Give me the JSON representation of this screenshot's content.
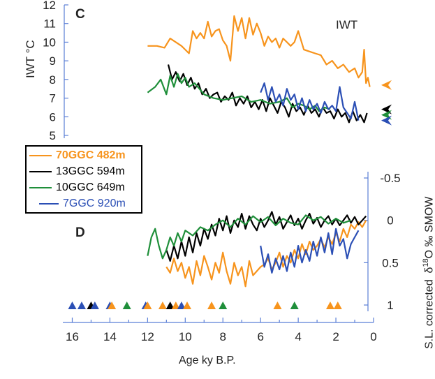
{
  "chart_data": [
    {
      "panel": "C",
      "type": "line",
      "title": "IWT",
      "ylabel": "IWT °C",
      "ylim": [
        5,
        12
      ],
      "yticks": [
        "5",
        "6",
        "7",
        "8",
        "9",
        "10",
        "11",
        "12"
      ],
      "arrow_markers": [
        {
          "series": "70GGC 482m",
          "y": 7.7,
          "color": "#f7941d"
        },
        {
          "series": "13GGC 594m",
          "y": 6.4,
          "color": "#000000"
        },
        {
          "series": "10GGC 649m",
          "y": 6.1,
          "color": "#1f8f3a"
        },
        {
          "series": "7GGC 920m",
          "y": 5.8,
          "color": "#2b4fb5"
        }
      ],
      "series": [
        {
          "name": "70GGC 482m",
          "color": "#f7941d",
          "x": [
            12.0,
            11.5,
            11.1,
            10.8,
            10.5,
            10.2,
            10.0,
            9.8,
            9.6,
            9.4,
            9.2,
            9.0,
            8.8,
            8.6,
            8.4,
            8.2,
            8.0,
            7.8,
            7.6,
            7.4,
            7.2,
            7.0,
            6.8,
            6.6,
            6.4,
            6.2,
            6.0,
            5.8,
            5.6,
            5.4,
            5.2,
            5.0,
            4.8,
            4.6,
            4.4,
            4.2,
            4.0,
            3.7,
            3.4,
            3.1,
            2.8,
            2.5,
            2.2,
            1.9,
            1.6,
            1.3,
            1.0,
            0.8,
            0.6,
            0.5,
            0.4,
            0.3,
            0.2
          ],
          "values": [
            9.8,
            9.8,
            9.7,
            10.2,
            10.0,
            9.8,
            9.6,
            9.4,
            10.6,
            10.2,
            10.5,
            10.2,
            11.1,
            10.3,
            10.6,
            10.7,
            10.1,
            9.8,
            9.0,
            11.4,
            10.6,
            11.3,
            10.2,
            11.3,
            10.4,
            11.0,
            10.5,
            9.8,
            10.3,
            10.0,
            10.2,
            9.7,
            10.2,
            10.0,
            9.8,
            10.0,
            10.6,
            9.6,
            9.5,
            9.4,
            9.3,
            8.8,
            9.0,
            8.6,
            8.8,
            8.4,
            8.6,
            8.1,
            8.4,
            9.6,
            7.8,
            8.1,
            7.6
          ]
        },
        {
          "name": "13GGC 594m",
          "color": "#000000",
          "x": [
            10.9,
            10.7,
            10.5,
            10.3,
            10.1,
            9.9,
            9.7,
            9.5,
            9.3,
            9.1,
            8.9,
            8.7,
            8.5,
            8.3,
            8.1,
            7.9,
            7.7,
            7.5,
            7.3,
            7.1,
            6.9,
            6.7,
            6.5,
            6.3,
            6.1,
            5.9,
            5.7,
            5.5,
            5.3,
            5.1,
            4.9,
            4.7,
            4.5,
            4.3,
            4.1,
            3.9,
            3.7,
            3.5,
            3.3,
            3.1,
            2.9,
            2.7,
            2.5,
            2.3,
            2.1,
            1.9,
            1.7,
            1.5,
            1.3,
            1.1,
            0.9,
            0.7,
            0.5,
            0.35
          ],
          "values": [
            8.8,
            8.0,
            8.4,
            7.9,
            8.3,
            7.7,
            8.1,
            7.5,
            7.8,
            7.2,
            7.5,
            7.0,
            7.2,
            7.3,
            6.8,
            7.1,
            6.9,
            7.3,
            6.6,
            7.0,
            6.7,
            7.1,
            6.5,
            6.8,
            6.4,
            6.9,
            6.3,
            7.0,
            6.6,
            6.2,
            6.8,
            6.5,
            6.0,
            6.7,
            6.3,
            6.5,
            6.1,
            6.6,
            6.2,
            6.4,
            6.0,
            6.5,
            6.2,
            6.3,
            5.9,
            6.4,
            6.0,
            6.2,
            5.7,
            6.3,
            5.8,
            6.1,
            5.7,
            6.2
          ]
        },
        {
          "name": "10GGC 649m",
          "color": "#1f8f3a",
          "x": [
            12.0,
            11.6,
            11.3,
            11.0,
            10.8,
            10.6,
            10.4,
            10.2,
            10.0,
            9.8,
            9.5,
            9.0,
            8.5,
            8.0,
            7.5,
            7.0,
            6.5,
            6.0,
            5.5,
            5.0,
            4.6,
            4.3,
            4.0,
            3.7,
            3.4,
            3.1,
            2.9,
            2.6,
            2.3
          ],
          "values": [
            7.3,
            7.6,
            8.0,
            7.2,
            8.2,
            7.6,
            8.3,
            7.8,
            8.1,
            7.6,
            7.8,
            7.2,
            7.0,
            6.9,
            7.0,
            7.1,
            6.8,
            6.9,
            6.7,
            6.8,
            7.0,
            6.5,
            6.7,
            6.6,
            6.4,
            6.6,
            6.3,
            6.5,
            6.4
          ]
        },
        {
          "name": "7GGC 920m",
          "color": "#2b4fb5",
          "x": [
            6.0,
            5.8,
            5.6,
            5.4,
            5.2,
            5.0,
            4.8,
            4.6,
            4.4,
            4.2,
            4.0,
            3.8,
            3.6,
            3.4,
            3.2,
            3.0,
            2.8,
            2.6,
            2.4,
            2.2,
            2.0,
            1.8,
            1.6,
            1.4,
            1.2,
            1.0,
            0.8
          ],
          "values": [
            7.3,
            7.8,
            6.9,
            7.6,
            6.8,
            7.2,
            6.6,
            7.5,
            6.9,
            7.2,
            6.4,
            7.0,
            6.3,
            6.9,
            6.4,
            6.7,
            6.2,
            6.8,
            6.4,
            6.6,
            6.3,
            7.6,
            6.5,
            6.2,
            5.9,
            6.8,
            5.8
          ]
        }
      ]
    },
    {
      "panel": "D",
      "type": "line",
      "ylabel_prefix": "S.L. corrected",
      "ylabel_symbol": "δ",
      "ylabel_super": "18",
      "ylabel_suffix": "O ‰ SMOW",
      "ylim": [
        1,
        -0.5
      ],
      "yticks": [
        "-0.5",
        "0",
        "0.5",
        "1"
      ],
      "xlabel": "Age ky B.P.",
      "xlim": [
        16.5,
        0
      ],
      "xticks": [
        "16",
        "14",
        "12",
        "10",
        "8",
        "6",
        "4",
        "2",
        "0"
      ],
      "series": [
        {
          "name": "70GGC 482m",
          "color": "#f7941d",
          "x": [
            11.0,
            10.8,
            10.6,
            10.4,
            10.2,
            10.0,
            9.8,
            9.6,
            9.4,
            9.2,
            9.0,
            8.8,
            8.6,
            8.4,
            8.2,
            8.0,
            7.8,
            7.6,
            7.4,
            7.2,
            7.0,
            6.8,
            6.6,
            6.4,
            6.2,
            6.0,
            5.8,
            5.6,
            5.4,
            5.2,
            5.0,
            4.8,
            4.6,
            4.4,
            4.2,
            4.0,
            3.8,
            3.6,
            3.4,
            3.2,
            3.0,
            2.8,
            2.6,
            2.4,
            2.2,
            2.0,
            1.8,
            1.6,
            1.4,
            1.2,
            1.0,
            0.8,
            0.6,
            0.4
          ],
          "values": [
            0.55,
            0.62,
            0.45,
            0.6,
            0.5,
            0.68,
            0.55,
            0.75,
            0.48,
            0.65,
            0.42,
            0.55,
            0.7,
            0.5,
            0.62,
            0.38,
            0.6,
            0.75,
            0.5,
            0.65,
            0.55,
            0.78,
            0.48,
            0.65,
            0.6,
            0.55,
            0.52,
            0.45,
            0.58,
            0.5,
            0.38,
            0.55,
            0.42,
            0.5,
            0.35,
            0.45,
            0.28,
            0.4,
            0.25,
            0.35,
            0.3,
            0.22,
            0.32,
            0.2,
            0.28,
            0.15,
            0.25,
            0.1,
            0.2,
            0.05,
            0.1,
            0.02,
            0.08,
            0.0
          ]
        },
        {
          "name": "13GGC 594m",
          "color": "#000000",
          "x": [
            11.0,
            10.8,
            10.6,
            10.4,
            10.2,
            10.0,
            9.8,
            9.6,
            9.4,
            9.2,
            9.0,
            8.8,
            8.6,
            8.4,
            8.2,
            8.0,
            7.8,
            7.6,
            7.4,
            7.2,
            7.0,
            6.8,
            6.6,
            6.4,
            6.2,
            6.0,
            5.8,
            5.6,
            5.4,
            5.2,
            5.0,
            4.8,
            4.6,
            4.4,
            4.2,
            4.0,
            3.8,
            3.6,
            3.4,
            3.2,
            3.0,
            2.8,
            2.6,
            2.4,
            2.2,
            2.0,
            1.8,
            1.6,
            1.4,
            1.2,
            1.0,
            0.8,
            0.6,
            0.4
          ],
          "values": [
            0.35,
            0.48,
            0.3,
            0.45,
            0.25,
            0.42,
            0.2,
            0.38,
            0.15,
            0.3,
            0.1,
            0.22,
            0.05,
            0.18,
            -0.02,
            0.12,
            -0.05,
            0.15,
            0.0,
            0.08,
            -0.08,
            0.1,
            -0.05,
            0.05,
            0.12,
            -0.02,
            0.08,
            0.0,
            -0.1,
            0.05,
            -0.04,
            0.1,
            0.02,
            -0.06,
            0.06,
            -0.02,
            0.1,
            0.0,
            -0.08,
            0.04,
            -0.03,
            0.08,
            0.0,
            -0.05,
            0.05,
            -0.02,
            0.06,
            0.0,
            -0.06,
            0.03,
            -0.04,
            0.05,
            0.0,
            -0.05
          ]
        },
        {
          "name": "10GGC 649m",
          "color": "#1f8f3a",
          "x": [
            12.0,
            11.8,
            11.6,
            11.4,
            11.2,
            11.0,
            10.8,
            10.6,
            10.4,
            10.2,
            10.0,
            9.6,
            9.2,
            8.8,
            8.4,
            8.0,
            7.6,
            7.2,
            6.8,
            6.4,
            6.0,
            5.6,
            5.2,
            4.8,
            4.4,
            4.0,
            3.6,
            3.2,
            2.8,
            2.4,
            2.0,
            1.6,
            1.2
          ],
          "values": [
            0.42,
            0.2,
            0.1,
            0.3,
            0.45,
            0.35,
            0.2,
            0.3,
            0.15,
            0.25,
            0.12,
            0.18,
            0.08,
            0.12,
            0.05,
            0.0,
            0.08,
            -0.02,
            0.05,
            -0.05,
            0.02,
            -0.04,
            0.06,
            -0.02,
            0.03,
            0.05,
            -0.06,
            0.0,
            -0.04,
            0.04,
            -0.02,
            0.03,
            0.0
          ]
        },
        {
          "name": "7GGC 920m",
          "color": "#2b4fb5",
          "x": [
            6.0,
            5.8,
            5.6,
            5.4,
            5.2,
            5.0,
            4.8,
            4.6,
            4.4,
            4.2,
            4.0,
            3.8,
            3.6,
            3.4,
            3.2,
            3.0,
            2.8,
            2.6,
            2.4,
            2.2,
            2.0,
            1.8,
            1.6,
            1.4,
            1.2,
            1.0,
            0.8
          ],
          "values": [
            0.3,
            0.55,
            0.4,
            0.62,
            0.45,
            0.58,
            0.42,
            0.6,
            0.38,
            0.55,
            0.3,
            0.5,
            0.35,
            0.48,
            0.25,
            0.42,
            0.2,
            0.38,
            0.15,
            0.4,
            0.1,
            0.3,
            0.22,
            0.45,
            0.28,
            0.2,
            0.12
          ]
        }
      ],
      "age_control_triangles": [
        {
          "x": 16.0,
          "color": "#2b4fb5"
        },
        {
          "x": 15.5,
          "color": "#2b4fb5"
        },
        {
          "x": 15.0,
          "color": "#000000"
        },
        {
          "x": 14.8,
          "color": "#2b4fb5"
        },
        {
          "x": 14.0,
          "color": "#2b4fb5"
        },
        {
          "x": 13.9,
          "color": "#f7941d"
        },
        {
          "x": 13.1,
          "color": "#1f8f3a"
        },
        {
          "x": 12.1,
          "color": "#2b4fb5"
        },
        {
          "x": 12.0,
          "color": "#f7941d"
        },
        {
          "x": 11.2,
          "color": "#f7941d"
        },
        {
          "x": 10.8,
          "color": "#000000"
        },
        {
          "x": 10.5,
          "color": "#f7941d"
        },
        {
          "x": 10.2,
          "color": "#2b4fb5"
        },
        {
          "x": 9.9,
          "color": "#f7941d"
        },
        {
          "x": 8.6,
          "color": "#f7941d"
        },
        {
          "x": 8.0,
          "color": "#1f8f3a"
        },
        {
          "x": 5.1,
          "color": "#f7941d"
        },
        {
          "x": 4.2,
          "color": "#1f8f3a"
        },
        {
          "x": 2.3,
          "color": "#f7941d"
        },
        {
          "x": 1.9,
          "color": "#f7941d"
        }
      ]
    }
  ],
  "legend": [
    {
      "label": "70GGC 482m",
      "color": "#f7941d"
    },
    {
      "label": "13GGC 594m",
      "color": "#000000"
    },
    {
      "label": "10GGC 649m",
      "color": "#1f8f3a"
    },
    {
      "label": "7GGC 920m",
      "color": "#2b4fb5"
    }
  ],
  "axis_color": "#5b7fd6"
}
